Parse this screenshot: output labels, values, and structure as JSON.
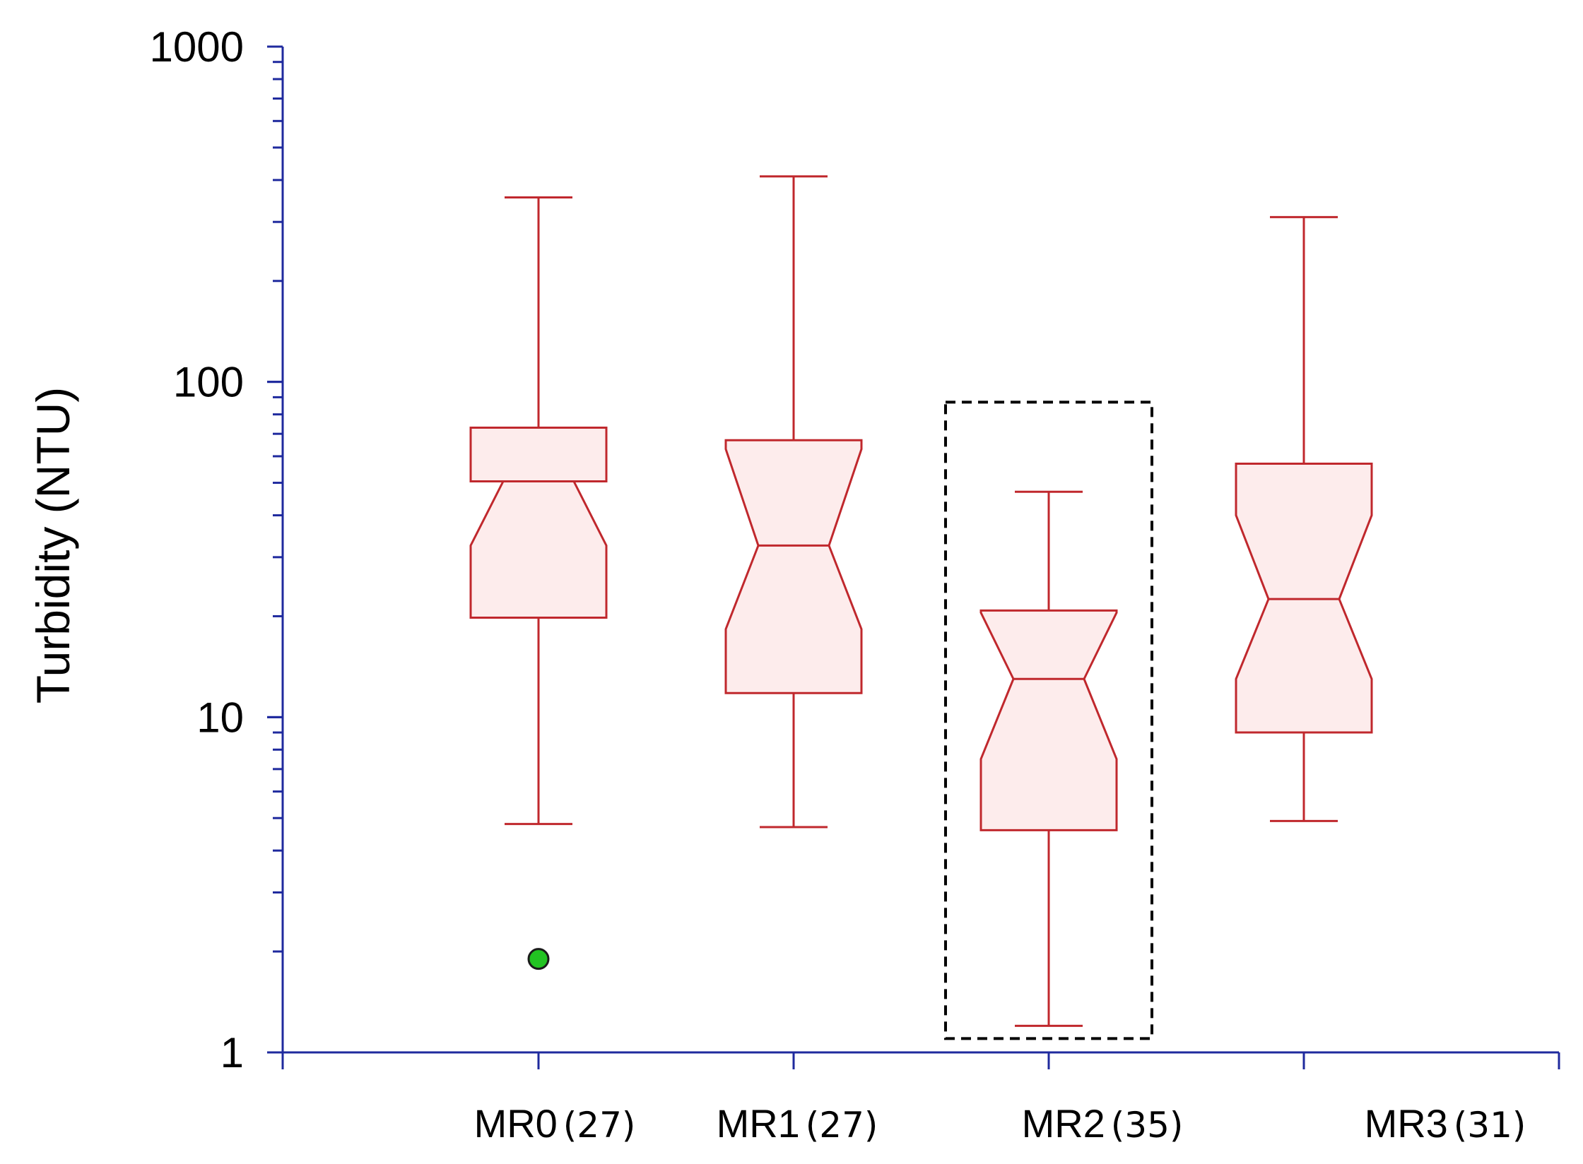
{
  "chart_data": {
    "type": "box",
    "ylabel": "Turbidity (NTU)",
    "yscale": "log",
    "ylim": [
      1,
      1000
    ],
    "yticks": [
      "1",
      "10",
      "100",
      "1000"
    ],
    "categories": [
      {
        "label": "MR0",
        "n": "(27)"
      },
      {
        "label": "MR1",
        "n": "(27)"
      },
      {
        "label": "MR2",
        "n": "(35)"
      },
      {
        "label": "MR3",
        "n": "(31)"
      }
    ],
    "boxes": [
      {
        "name": "MR0",
        "whisker_low": 4.8,
        "q1": 19.8,
        "notch_low": 32.5,
        "median": 50.5,
        "notch_high": 50.5,
        "q3": 73,
        "whisker_high": 355,
        "outliers": [
          1.9
        ]
      },
      {
        "name": "MR1",
        "whisker_low": 4.7,
        "q1": 11.8,
        "notch_low": 18.3,
        "median": 32.5,
        "notch_high": 63,
        "q3": 67,
        "whisker_high": 410,
        "outliers": []
      },
      {
        "name": "MR2",
        "whisker_low": 1.2,
        "q1": 4.6,
        "notch_low": 7.5,
        "median": 13,
        "notch_high": 20.5,
        "q3": 20.8,
        "whisker_high": 47,
        "outliers": []
      },
      {
        "name": "MR3",
        "whisker_low": 4.9,
        "q1": 9,
        "notch_low": 13,
        "median": 22.5,
        "notch_high": 40,
        "q3": 57,
        "whisker_high": 310,
        "outliers": []
      }
    ],
    "highlight": {
      "category": "MR2",
      "style": "dashed-box",
      "ylow": 1.1,
      "yhigh": 87
    },
    "colors": {
      "axis": "#1f2a9e",
      "box_stroke": "#c0282d",
      "box_fill": "#fdecec",
      "outlier": "#22c322",
      "highlight": "#000000"
    },
    "grid": false
  }
}
